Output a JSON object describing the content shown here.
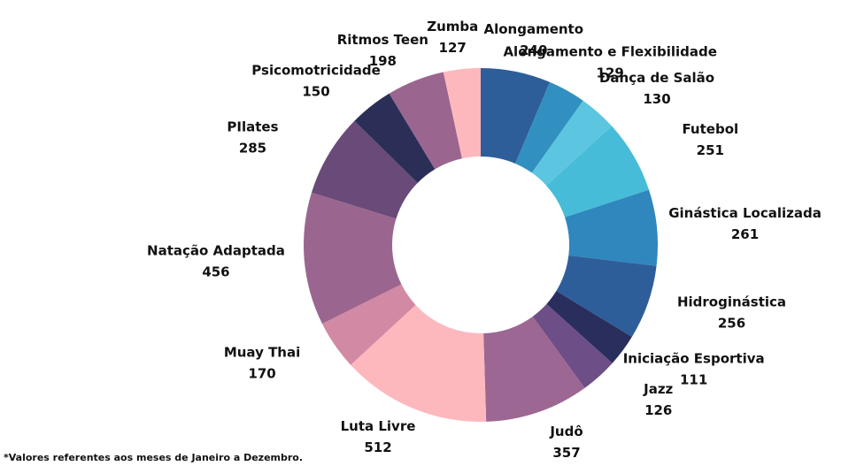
{
  "chart_data": {
    "type": "pie",
    "categories": [
      "Alongamento",
      "Alongamento e Flexibilidade",
      "Dança de Salão",
      "Futebol",
      "Ginástica Localizada",
      "Hidroginástica",
      "Iniciação Esportiva",
      "Jazz",
      "Judô",
      "Luta Livre",
      "Muay Thai",
      "Natação Adaptada",
      "PIlates",
      "Psicomotricidade",
      "Ritmos Teen",
      "Zumba"
    ],
    "values": [
      240,
      129,
      130,
      251,
      261,
      256,
      111,
      126,
      357,
      512,
      170,
      456,
      285,
      150,
      198,
      127
    ],
    "colors": [
      "#2e5e9a",
      "#3290c0",
      "#5cc6e0",
      "#46bcd8",
      "#2f87bd",
      "#2e5e9a",
      "#2a2e5c",
      "#6d4e86",
      "#9c6792",
      "#fdb8bd",
      "#d28aa4",
      "#9a6690",
      "#6a4a78",
      "#2b2f58",
      "#9a6690",
      "#fdb8bd"
    ],
    "note": "*Valores referentes aos meses de Janeiro a Dezembro."
  }
}
